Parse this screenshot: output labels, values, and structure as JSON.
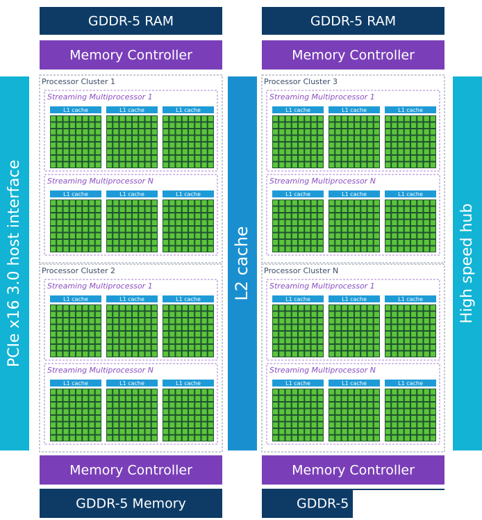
{
  "host_interface": "PCIe x16 3.0 host interface",
  "l2_cache": "L2 cache",
  "hub": "High speed hub",
  "columns": [
    {
      "top_ram": "GDDR-5 RAM",
      "top_controller": "Memory Controller",
      "clusters": [
        {
          "label": "Processor Cluster 1",
          "multiprocessors": [
            {
              "label": "Streaming Multiprocessor 1",
              "cores": [
                "L1 cache",
                "L1 cache",
                "L1 cache"
              ]
            },
            {
              "label": "Streaming Multiprocessor N",
              "cores": [
                "L1 cache",
                "L1 cache",
                "L1 cache"
              ]
            }
          ]
        },
        {
          "label": "Processor Cluster 2",
          "multiprocessors": [
            {
              "label": "Streaming Multiprocessor 1",
              "cores": [
                "L1 cache",
                "L1 cache",
                "L1 cache"
              ]
            },
            {
              "label": "Streaming Multiprocessor N",
              "cores": [
                "L1 cache",
                "L1 cache",
                "L1 cache"
              ]
            }
          ]
        }
      ],
      "bottom_controller": "Memory Controller",
      "bottom_memory": "GDDR-5 Memory"
    },
    {
      "top_ram": "GDDR-5 RAM",
      "top_controller": "Memory Controller",
      "clusters": [
        {
          "label": "Processor Cluster 3",
          "multiprocessors": [
            {
              "label": "Streaming Multiprocessor 1",
              "cores": [
                "L1 cache",
                "L1 cache",
                "L1 cache"
              ]
            },
            {
              "label": "Streaming Multiprocessor N",
              "cores": [
                "L1 cache",
                "L1 cache",
                "L1 cache"
              ]
            }
          ]
        },
        {
          "label": "Processor Cluster N",
          "multiprocessors": [
            {
              "label": "Streaming Multiprocessor 1",
              "cores": [
                "L1 cache",
                "L1 cache",
                "L1 cache"
              ]
            },
            {
              "label": "Streaming Multiprocessor N",
              "cores": [
                "L1 cache",
                "L1 cache",
                "L1 cache"
              ]
            }
          ]
        }
      ],
      "bottom_controller": "Memory Controller",
      "bottom_memory": "GDDR-5"
    }
  ]
}
